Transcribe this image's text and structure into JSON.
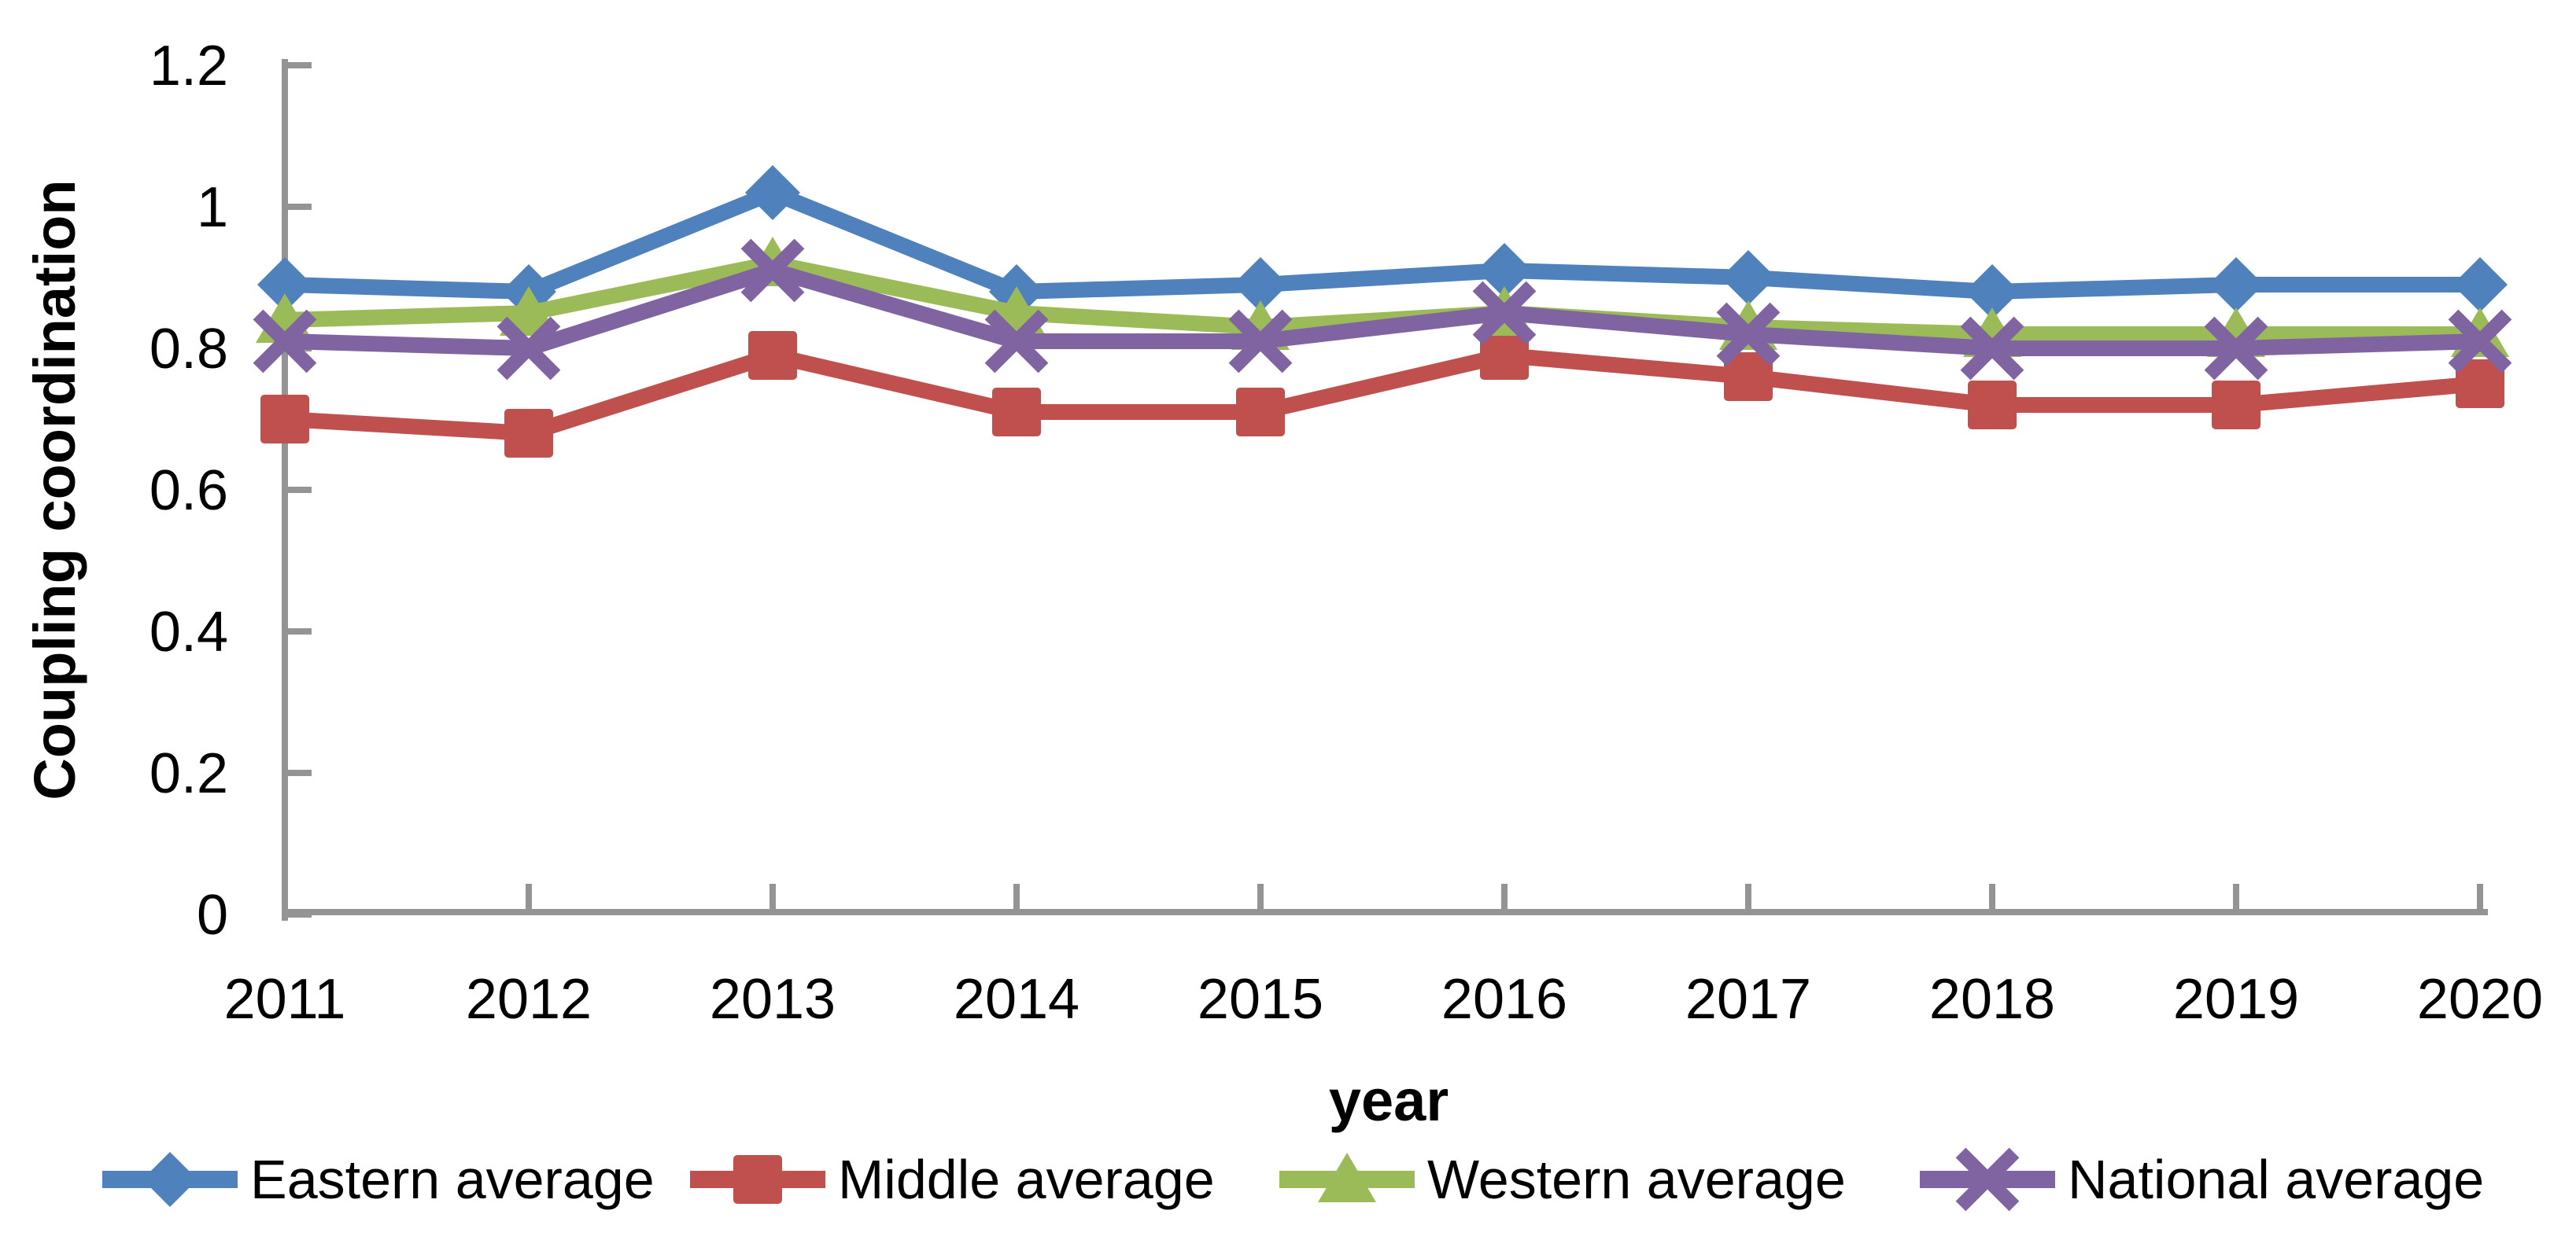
{
  "chart_data": {
    "type": "line",
    "title": "",
    "xlabel": "year",
    "ylabel": "Coupling coordination",
    "categories": [
      "2011",
      "2012",
      "2013",
      "2014",
      "2015",
      "2016",
      "2017",
      "2018",
      "2019",
      "2020"
    ],
    "y_ticks": [
      "0",
      "0.2",
      "0.4",
      "0.6",
      "0.8",
      "1",
      "1.2"
    ],
    "y_tick_values": [
      0,
      0.2,
      0.4,
      0.6,
      0.8,
      1,
      1.2
    ],
    "ylim": [
      0,
      1.2
    ],
    "grid": "off",
    "legend_position": "bottom",
    "axis_color": "#949494",
    "text_color": "#000000",
    "series": [
      {
        "name": "Eastern average",
        "marker": "diamond",
        "color": "#4F81BD",
        "values": [
          0.89,
          0.88,
          1.02,
          0.88,
          0.89,
          0.91,
          0.9,
          0.88,
          0.89,
          0.89
        ]
      },
      {
        "name": "Middle average",
        "marker": "square",
        "color": "#C0504D",
        "values": [
          0.7,
          0.68,
          0.79,
          0.71,
          0.71,
          0.79,
          0.76,
          0.72,
          0.72,
          0.75
        ]
      },
      {
        "name": "Western average",
        "marker": "triangle",
        "color": "#9BBB59",
        "values": [
          0.84,
          0.85,
          0.92,
          0.85,
          0.83,
          0.85,
          0.83,
          0.82,
          0.82,
          0.82
        ]
      },
      {
        "name": "National average",
        "marker": "x",
        "color": "#8064A2",
        "values": [
          0.81,
          0.8,
          0.91,
          0.81,
          0.81,
          0.85,
          0.82,
          0.8,
          0.8,
          0.81
        ]
      }
    ]
  }
}
